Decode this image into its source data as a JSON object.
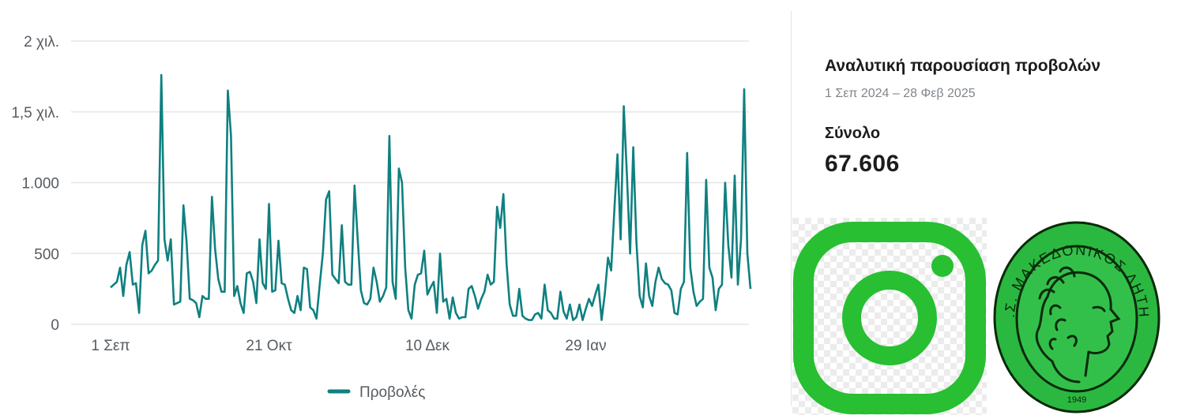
{
  "chart_data": {
    "type": "line",
    "title": "",
    "xlabel": "",
    "ylabel": "",
    "ylim": [
      0,
      2000
    ],
    "y_ticks": [
      {
        "value": 0,
        "label": "0"
      },
      {
        "value": 500,
        "label": "500"
      },
      {
        "value": 1000,
        "label": "1.000"
      },
      {
        "value": 1500,
        "label": "1,5 χιλ."
      },
      {
        "value": 2000,
        "label": "2 χιλ."
      }
    ],
    "x_ticks": [
      {
        "index": 0,
        "label": "1 Σεπ"
      },
      {
        "index": 50,
        "label": "21 Οκτ"
      },
      {
        "index": 100,
        "label": "10 Δεκ"
      },
      {
        "index": 150,
        "label": "29 Ιαν"
      }
    ],
    "grid": true,
    "legend_position": "bottom-center",
    "series": [
      {
        "name": "Προβολές",
        "color": "#0f8080",
        "values": [
          260,
          280,
          300,
          400,
          200,
          420,
          510,
          280,
          290,
          80,
          560,
          660,
          360,
          380,
          420,
          450,
          1760,
          600,
          450,
          600,
          140,
          150,
          160,
          840,
          580,
          180,
          170,
          150,
          50,
          200,
          180,
          180,
          900,
          530,
          320,
          230,
          230,
          1650,
          1330,
          200,
          270,
          150,
          80,
          360,
          370,
          300,
          150,
          600,
          290,
          250,
          850,
          230,
          240,
          590,
          290,
          280,
          180,
          100,
          80,
          200,
          100,
          400,
          390,
          120,
          100,
          40,
          280,
          500,
          880,
          940,
          350,
          320,
          290,
          700,
          300,
          280,
          280,
          980,
          600,
          240,
          150,
          140,
          180,
          400,
          300,
          160,
          200,
          260,
          1330,
          300,
          180,
          1100,
          1000,
          400,
          100,
          40,
          280,
          350,
          360,
          520,
          210,
          260,
          300,
          80,
          500,
          160,
          180,
          40,
          190,
          80,
          40,
          50,
          50,
          250,
          270,
          200,
          110,
          180,
          230,
          350,
          280,
          300,
          830,
          680,
          920,
          430,
          140,
          60,
          60,
          250,
          60,
          40,
          30,
          30,
          70,
          80,
          40,
          280,
          100,
          80,
          40,
          40,
          230,
          90,
          40,
          140,
          30,
          50,
          140,
          30,
          110,
          180,
          130,
          210,
          280,
          30,
          210,
          470,
          380,
          800,
          1200,
          600,
          1540,
          1050,
          500,
          1250,
          580,
          200,
          120,
          430,
          200,
          130,
          300,
          400,
          320,
          290,
          280,
          240,
          80,
          70,
          250,
          300,
          1210,
          400,
          230,
          130,
          160,
          180,
          1020,
          400,
          330,
          100,
          250,
          280,
          1000,
          560,
          330,
          1050,
          280,
          600,
          1660,
          500,
          250
        ]
      }
    ]
  },
  "summary": {
    "title": "Αναλυτική παρουσίαση προβολών",
    "date_range": "1 Σεπ 2024 – 28 Φεβ 2025",
    "total_label": "Σύνολο",
    "total_value": "67.606"
  },
  "logos": {
    "instagram": {
      "icon": "instagram-icon",
      "color": "#28bf32"
    },
    "club_seal": {
      "icon": "club-seal-logo",
      "text": "Α.Σ. ΜΑΚΕΔΟΝΙΚΟΣ ΛΗΤΗΣ",
      "year": "1949",
      "color": "#2bb840"
    }
  }
}
